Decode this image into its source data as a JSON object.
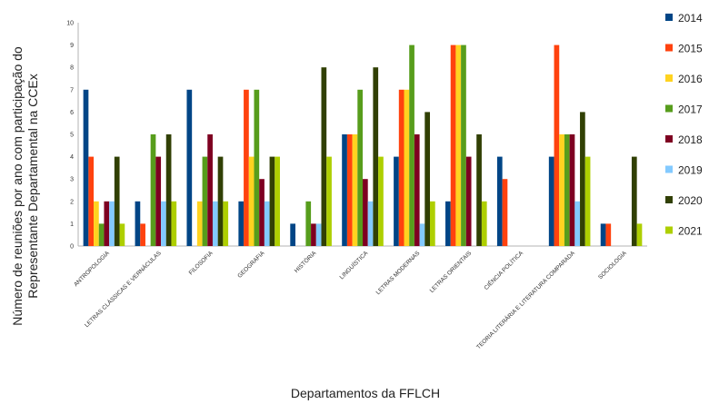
{
  "chart_data": {
    "type": "bar",
    "title": "",
    "xlabel": "Departamentos da FFLCH",
    "ylabel_lines": [
      "Número de reuniões por ano com participação do",
      "Representante Departamental na CCEx"
    ],
    "ylim": [
      0,
      10
    ],
    "yticks": [
      0,
      1,
      2,
      3,
      4,
      5,
      6,
      7,
      8,
      9,
      10
    ],
    "grid": false,
    "legend_position": "right",
    "categories": [
      "ANTROPOLOGIA",
      "LETRAS CLÁSSICAS E VERNÁCULAS",
      "FILOSOFIA",
      "GEOGRAFIA",
      "HISTÓRIA",
      "LINGUÍSTICA",
      "LETRAS MODERNAS",
      "LETRAS ORIENTAIS",
      "CIÊNCIA POLÍTICA",
      "TEORIA LITERÁRIA E LITERATURA COMPARADA",
      "SOCIOLOGIA"
    ],
    "series": [
      {
        "name": "2014",
        "color": "#004586",
        "values": [
          7,
          2,
          7,
          2,
          1,
          5,
          4,
          2,
          4,
          4,
          1
        ]
      },
      {
        "name": "2015",
        "color": "#ff420e",
        "values": [
          4,
          1,
          0,
          7,
          0,
          5,
          7,
          9,
          3,
          9,
          1
        ]
      },
      {
        "name": "2016",
        "color": "#ffd320",
        "values": [
          2,
          0,
          2,
          4,
          0,
          5,
          7,
          9,
          0,
          5,
          0
        ]
      },
      {
        "name": "2017",
        "color": "#579d1c",
        "values": [
          1,
          5,
          4,
          7,
          2,
          7,
          9,
          9,
          0,
          5,
          0
        ]
      },
      {
        "name": "2018",
        "color": "#7e0021",
        "values": [
          2,
          4,
          5,
          3,
          1,
          3,
          5,
          4,
          0,
          5,
          0
        ]
      },
      {
        "name": "2019",
        "color": "#83caff",
        "values": [
          2,
          2,
          2,
          2,
          1,
          2,
          1,
          0,
          0,
          2,
          0
        ]
      },
      {
        "name": "2020",
        "color": "#314004",
        "values": [
          4,
          5,
          4,
          4,
          8,
          8,
          6,
          5,
          0,
          6,
          4
        ]
      },
      {
        "name": "2021",
        "color": "#aecf00",
        "values": [
          1,
          2,
          2,
          4,
          4,
          4,
          2,
          2,
          0,
          4,
          1
        ]
      }
    ]
  }
}
